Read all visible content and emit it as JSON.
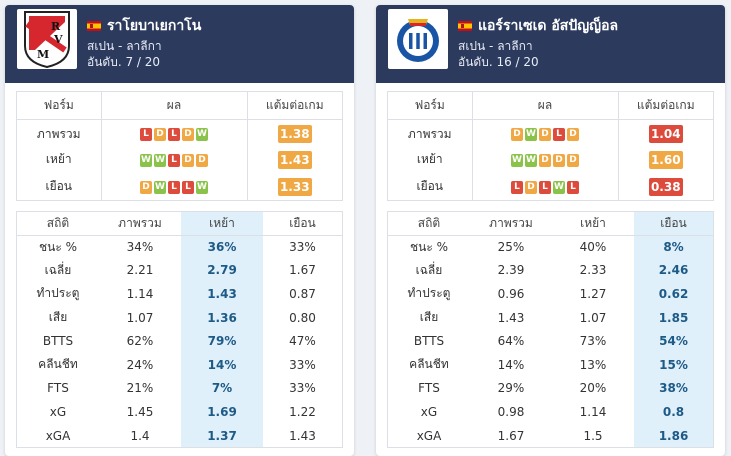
{
  "colors": {
    "header_bg": "#2c3a5e",
    "win": "#8bc34a",
    "draw": "#f0a845",
    "loss": "#dc4b3c",
    "highlight": "#dff0fb"
  },
  "teams": [
    {
      "name": "ราโยบาเยกาโน",
      "league": "สเปน - ลาลีกา",
      "rank": "อันดับ. 7 / 20",
      "highlight_col": 1,
      "form_headers": [
        "ฟอร์ม",
        "ผล",
        "แต้มต่อเกม"
      ],
      "form_rows": [
        {
          "label": "ภาพรวม",
          "results": [
            "L",
            "D",
            "L",
            "D",
            "W"
          ],
          "ppg": "1.38",
          "ppg_color": "#f0a845"
        },
        {
          "label": "เหย้า",
          "results": [
            "W",
            "W",
            "L",
            "D",
            "D"
          ],
          "ppg": "1.43",
          "ppg_color": "#f0a845"
        },
        {
          "label": "เยือน",
          "results": [
            "D",
            "W",
            "L",
            "L",
            "W"
          ],
          "ppg": "1.33",
          "ppg_color": "#f0a845"
        }
      ],
      "stats_headers": [
        "สถิติ",
        "ภาพรวม",
        "เหย้า",
        "เยือน"
      ],
      "stats": [
        [
          "ชนะ %",
          "34%",
          "36%",
          "33%"
        ],
        [
          "เฉลี่ย",
          "2.21",
          "2.79",
          "1.67"
        ],
        [
          "ทำประตู",
          "1.14",
          "1.43",
          "0.87"
        ],
        [
          "เสีย",
          "1.07",
          "1.36",
          "0.80"
        ],
        [
          "BTTS",
          "62%",
          "79%",
          "47%"
        ],
        [
          "คลีนชีท",
          "24%",
          "14%",
          "33%"
        ],
        [
          "FTS",
          "21%",
          "7%",
          "33%"
        ],
        [
          "xG",
          "1.45",
          "1.69",
          "1.22"
        ],
        [
          "xGA",
          "1.4",
          "1.37",
          "1.43"
        ]
      ]
    },
    {
      "name": "แอร์ราเซเด อัสปัญญ็อล",
      "league": "สเปน - ลาลีกา",
      "rank": "อันดับ. 16 / 20",
      "highlight_col": 2,
      "form_headers": [
        "ฟอร์ม",
        "ผล",
        "แต้มต่อเกม"
      ],
      "form_rows": [
        {
          "label": "ภาพรวม",
          "results": [
            "D",
            "W",
            "D",
            "L",
            "D"
          ],
          "ppg": "1.04",
          "ppg_color": "#dc4b3c"
        },
        {
          "label": "เหย้า",
          "results": [
            "W",
            "W",
            "D",
            "D",
            "D"
          ],
          "ppg": "1.60",
          "ppg_color": "#f0a845"
        },
        {
          "label": "เยือน",
          "results": [
            "L",
            "D",
            "L",
            "W",
            "L"
          ],
          "ppg": "0.38",
          "ppg_color": "#dc4b3c"
        }
      ],
      "stats_headers": [
        "สถิติ",
        "ภาพรวม",
        "เหย้า",
        "เยือน"
      ],
      "stats": [
        [
          "ชนะ %",
          "25%",
          "40%",
          "8%"
        ],
        [
          "เฉลี่ย",
          "2.39",
          "2.33",
          "2.46"
        ],
        [
          "ทำประตู",
          "0.96",
          "1.27",
          "0.62"
        ],
        [
          "เสีย",
          "1.43",
          "1.07",
          "1.85"
        ],
        [
          "BTTS",
          "64%",
          "73%",
          "54%"
        ],
        [
          "คลีนชีท",
          "14%",
          "13%",
          "15%"
        ],
        [
          "FTS",
          "29%",
          "20%",
          "38%"
        ],
        [
          "xG",
          "0.98",
          "1.14",
          "0.8"
        ],
        [
          "xGA",
          "1.67",
          "1.5",
          "1.86"
        ]
      ]
    }
  ]
}
